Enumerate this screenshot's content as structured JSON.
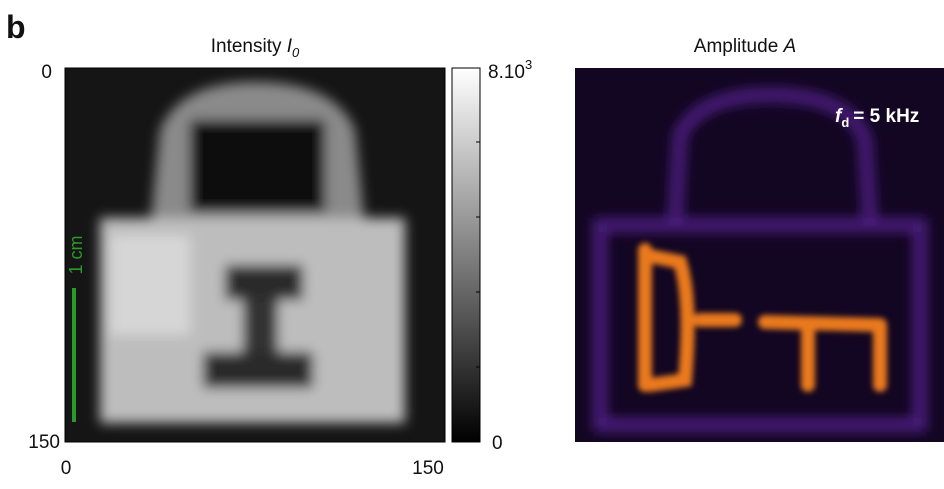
{
  "panel_label": "b",
  "left": {
    "title": "Intensity",
    "title_symbol": "I",
    "title_subscript": "0",
    "y_top": "0",
    "y_bottom": "150",
    "x_left": "0",
    "x_right": "150",
    "scale_bar": "1 cm"
  },
  "colorbar": {
    "max_base": "8.10",
    "max_exp": "3",
    "min": "0"
  },
  "right": {
    "title": "Amplitude",
    "title_symbol": "A",
    "annotation_symbol": "f",
    "annotation_subscript": "d",
    "annotation_text": "= 5 kHz"
  }
}
